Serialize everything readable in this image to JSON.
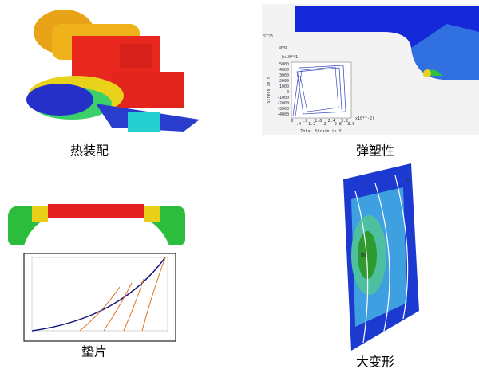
{
  "panels": [
    {
      "caption": "热装配"
    },
    {
      "caption": "弹塑性",
      "plot": {
        "label": "ST26",
        "sublabel": "avg",
        "y_multiplier": "(x10**1)",
        "x_multiplier": "(x10**-2)",
        "ylabel": "Stress in Y",
        "xlabel": "Total Strain in Y",
        "yticks": [
          "5000",
          "4000",
          "3000",
          "2000",
          "1000",
          "0",
          "-1000",
          "-2000",
          "-3000",
          "-4000"
        ],
        "xticks": [
          "0",
          ".4",
          ".8",
          "1.2",
          "1.6",
          "2",
          "2.4",
          "2.8",
          "3.2",
          "3.6"
        ]
      }
    },
    {
      "caption": "垫片"
    },
    {
      "caption": "大变形",
      "max_label": "MX",
      "min_label": "MN"
    }
  ]
}
